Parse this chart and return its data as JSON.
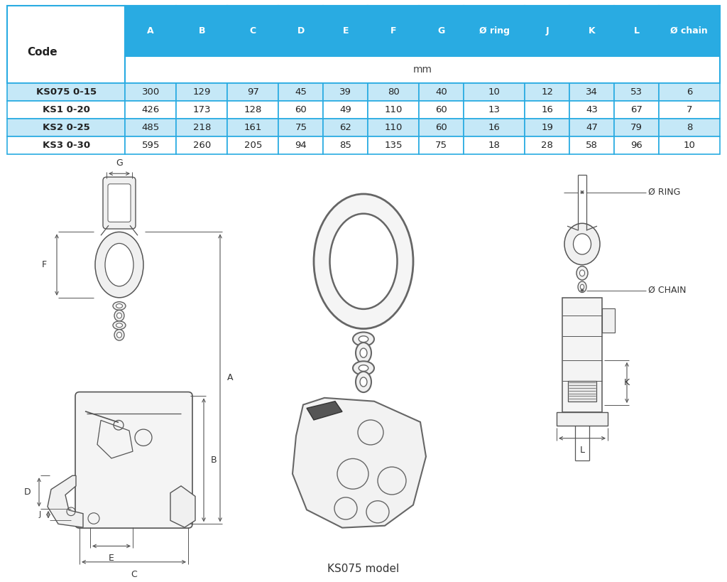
{
  "table_headers": [
    "Code",
    "A",
    "B",
    "C",
    "D",
    "E",
    "F",
    "G",
    "Ø ring",
    "J",
    "K",
    "L",
    "Ø chain"
  ],
  "table_subheader": "mm",
  "table_rows": [
    [
      "KS075 0-15",
      "300",
      "129",
      "97",
      "45",
      "39",
      "80",
      "40",
      "10",
      "12",
      "34",
      "53",
      "6"
    ],
    [
      "KS1 0-20",
      "426",
      "173",
      "128",
      "60",
      "49",
      "110",
      "60",
      "13",
      "16",
      "43",
      "67",
      "7"
    ],
    [
      "KS2 0-25",
      "485",
      "218",
      "161",
      "75",
      "62",
      "110",
      "60",
      "16",
      "19",
      "47",
      "79",
      "8"
    ],
    [
      "KS3 0-30",
      "595",
      "260",
      "205",
      "94",
      "85",
      "135",
      "75",
      "18",
      "28",
      "58",
      "96",
      "10"
    ]
  ],
  "header_bg": "#29ABE2",
  "subheader_bg": "#FFFFFF",
  "row_bg_1": "#C5E8F7",
  "row_bg_2": "#FFFFFF",
  "code_col_bg_1": "#C5E8F7",
  "code_col_bg_2": "#FFFFFF",
  "border_color": "#29ABE2",
  "caption": "KS075 model",
  "diagram_label_ring": "Ø RING",
  "diagram_label_chain": "Ø CHAIN",
  "line_color": "#555555",
  "dim_line_color": "#555555",
  "bg_color": "#FFFFFF"
}
